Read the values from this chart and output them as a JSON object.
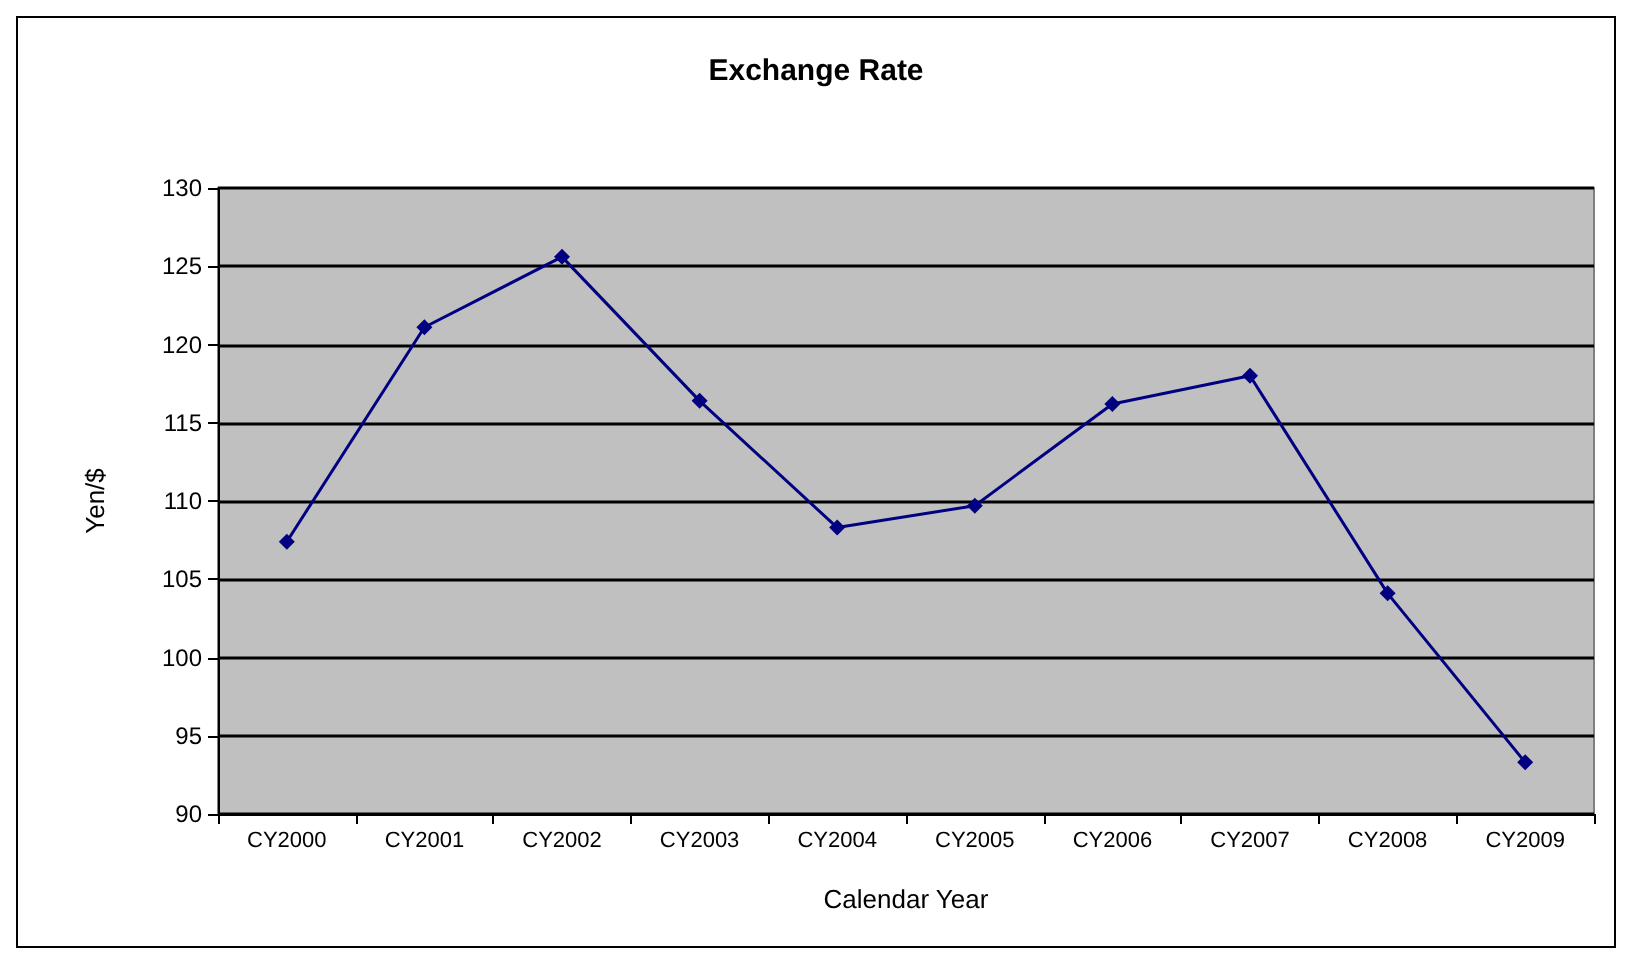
{
  "chart_data": {
    "type": "line",
    "title": "Exchange Rate",
    "xlabel": "Calendar Year",
    "ylabel": "Yen/$",
    "categories": [
      "CY2000",
      "CY2001",
      "CY2002",
      "CY2003",
      "CY2004",
      "CY2005",
      "CY2006",
      "CY2007",
      "CY2008",
      "CY2009"
    ],
    "series": [
      {
        "color": "#000080",
        "values": [
          107.4,
          121.1,
          125.6,
          116.4,
          108.3,
          109.7,
          116.2,
          118.0,
          104.1,
          93.3
        ]
      }
    ],
    "ylim": [
      90,
      130
    ],
    "yticks": [
      90,
      95,
      100,
      105,
      110,
      115,
      120,
      125,
      130
    ],
    "grid": "y",
    "marker": "diamond",
    "line_style": "solid"
  }
}
